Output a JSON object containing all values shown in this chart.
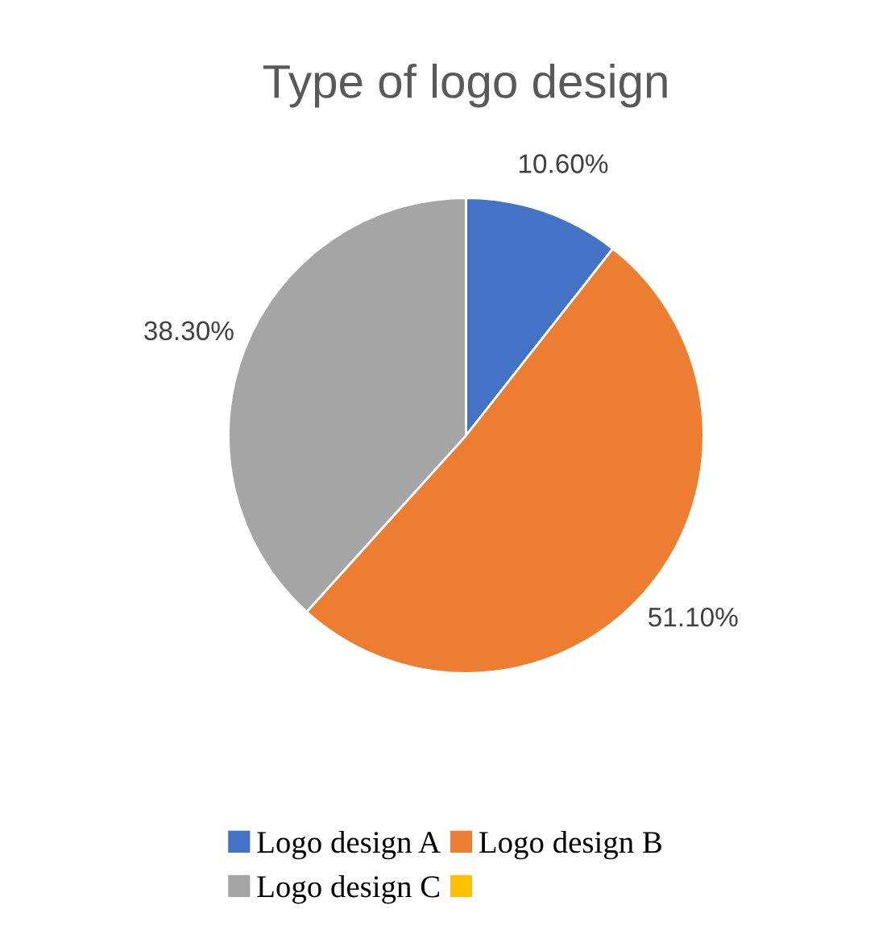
{
  "chart_data": {
    "type": "pie",
    "title": "Type of logo design",
    "categories": [
      "Logo design A",
      "Logo design B",
      "Logo design C",
      null
    ],
    "values": [
      10.6,
      51.1,
      38.3,
      0
    ],
    "colors": [
      "#4472c4",
      "#ed7d31",
      "#a5a5a5",
      "#ffc000"
    ],
    "value_labels": [
      "10.60%",
      "51.10%",
      "38.30%",
      null
    ],
    "legend": "bottom"
  }
}
